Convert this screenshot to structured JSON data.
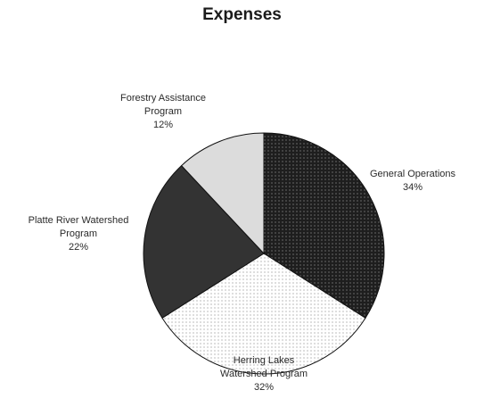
{
  "chart_data": {
    "type": "pie",
    "title": "Expenses",
    "slices": [
      {
        "label": "General Operations",
        "value": 34,
        "value_label": "34%",
        "color": "#1e1e1e",
        "pattern": "dots-dark"
      },
      {
        "label": "Herring Lakes Watershed Program",
        "value": 32,
        "value_label": "32%",
        "color": "#ffffff",
        "pattern": "dots-light"
      },
      {
        "label": "Platte River Watershed Program",
        "value": 22,
        "value_label": "22%",
        "color": "#333333",
        "pattern": "solid-dark"
      },
      {
        "label": "Forestry Assistance Program",
        "value": 12,
        "value_label": "12%",
        "color": "#dcdcdc",
        "pattern": "solid-light"
      }
    ],
    "label_lines": [
      [
        "General Operations"
      ],
      [
        "Herring Lakes",
        "Watershed Program"
      ],
      [
        "Platte River Watershed",
        "Program"
      ],
      [
        "Forestry Assistance",
        "Program"
      ]
    ],
    "start_angle_deg": 0,
    "direction": "clockwise",
    "legend": "none"
  }
}
